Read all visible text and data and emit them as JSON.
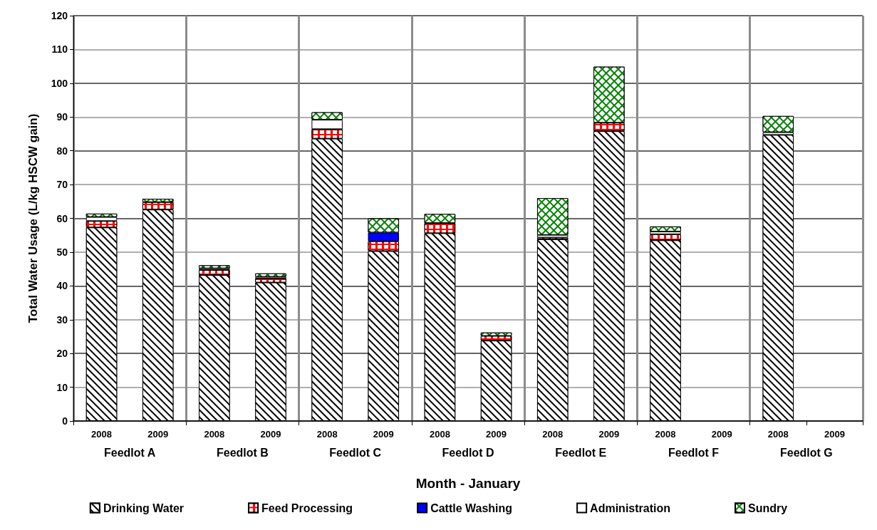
{
  "chart_data": {
    "type": "bar",
    "stacked": true,
    "xlabel": "Month - January",
    "ylabel": "Total Water Usage (L/kg HSCW gain)",
    "categories": [
      "2008",
      "2009",
      "2008",
      "2009",
      "2008",
      "2009",
      "2008",
      "2009",
      "2008",
      "2009",
      "2008",
      "2009",
      "2008",
      "2009"
    ],
    "annotations": [
      "Feedlot A",
      "Feedlot B",
      "Feedlot C",
      "Feedlot D",
      "Feedlot E",
      "Feedlot F",
      "Feedlot G"
    ],
    "series": [
      {
        "name": "Drinking Water",
        "color": "#000000",
        "values": [
          57.3,
          62.6,
          43.2,
          41.0,
          83.6,
          50.3,
          55.6,
          23.8,
          53.8,
          85.8,
          53.5,
          null,
          84.7,
          null
        ]
      },
      {
        "name": "Feed Processing",
        "color": "#ff0000",
        "values": [
          1.9,
          2.2,
          1.5,
          1.2,
          2.8,
          2.9,
          3.0,
          1.4,
          0.5,
          2.5,
          1.8,
          null,
          null,
          null
        ]
      },
      {
        "name": "Cattle Washing",
        "color": "#0000ff",
        "values": [
          null,
          null,
          null,
          null,
          null,
          2.6,
          null,
          null,
          null,
          null,
          null,
          null,
          null,
          null
        ]
      },
      {
        "name": "Administration",
        "color": "#ffffff",
        "values": [
          1.2,
          null,
          0.5,
          0.5,
          2.8,
          null,
          null,
          null,
          0.8,
          null,
          0.8,
          null,
          0.8,
          null
        ]
      },
      {
        "name": "Sundry",
        "color": "#008000",
        "values": [
          1.0,
          1.0,
          0.9,
          1.0,
          2.2,
          4.2,
          2.7,
          1.0,
          10.9,
          16.6,
          1.5,
          null,
          4.8,
          null
        ]
      }
    ],
    "ylim": [
      0,
      120
    ],
    "yticks": [
      0,
      10,
      20,
      30,
      40,
      50,
      60,
      70,
      80,
      90,
      100,
      110,
      120
    ],
    "grid": true,
    "legend": "bottom"
  }
}
